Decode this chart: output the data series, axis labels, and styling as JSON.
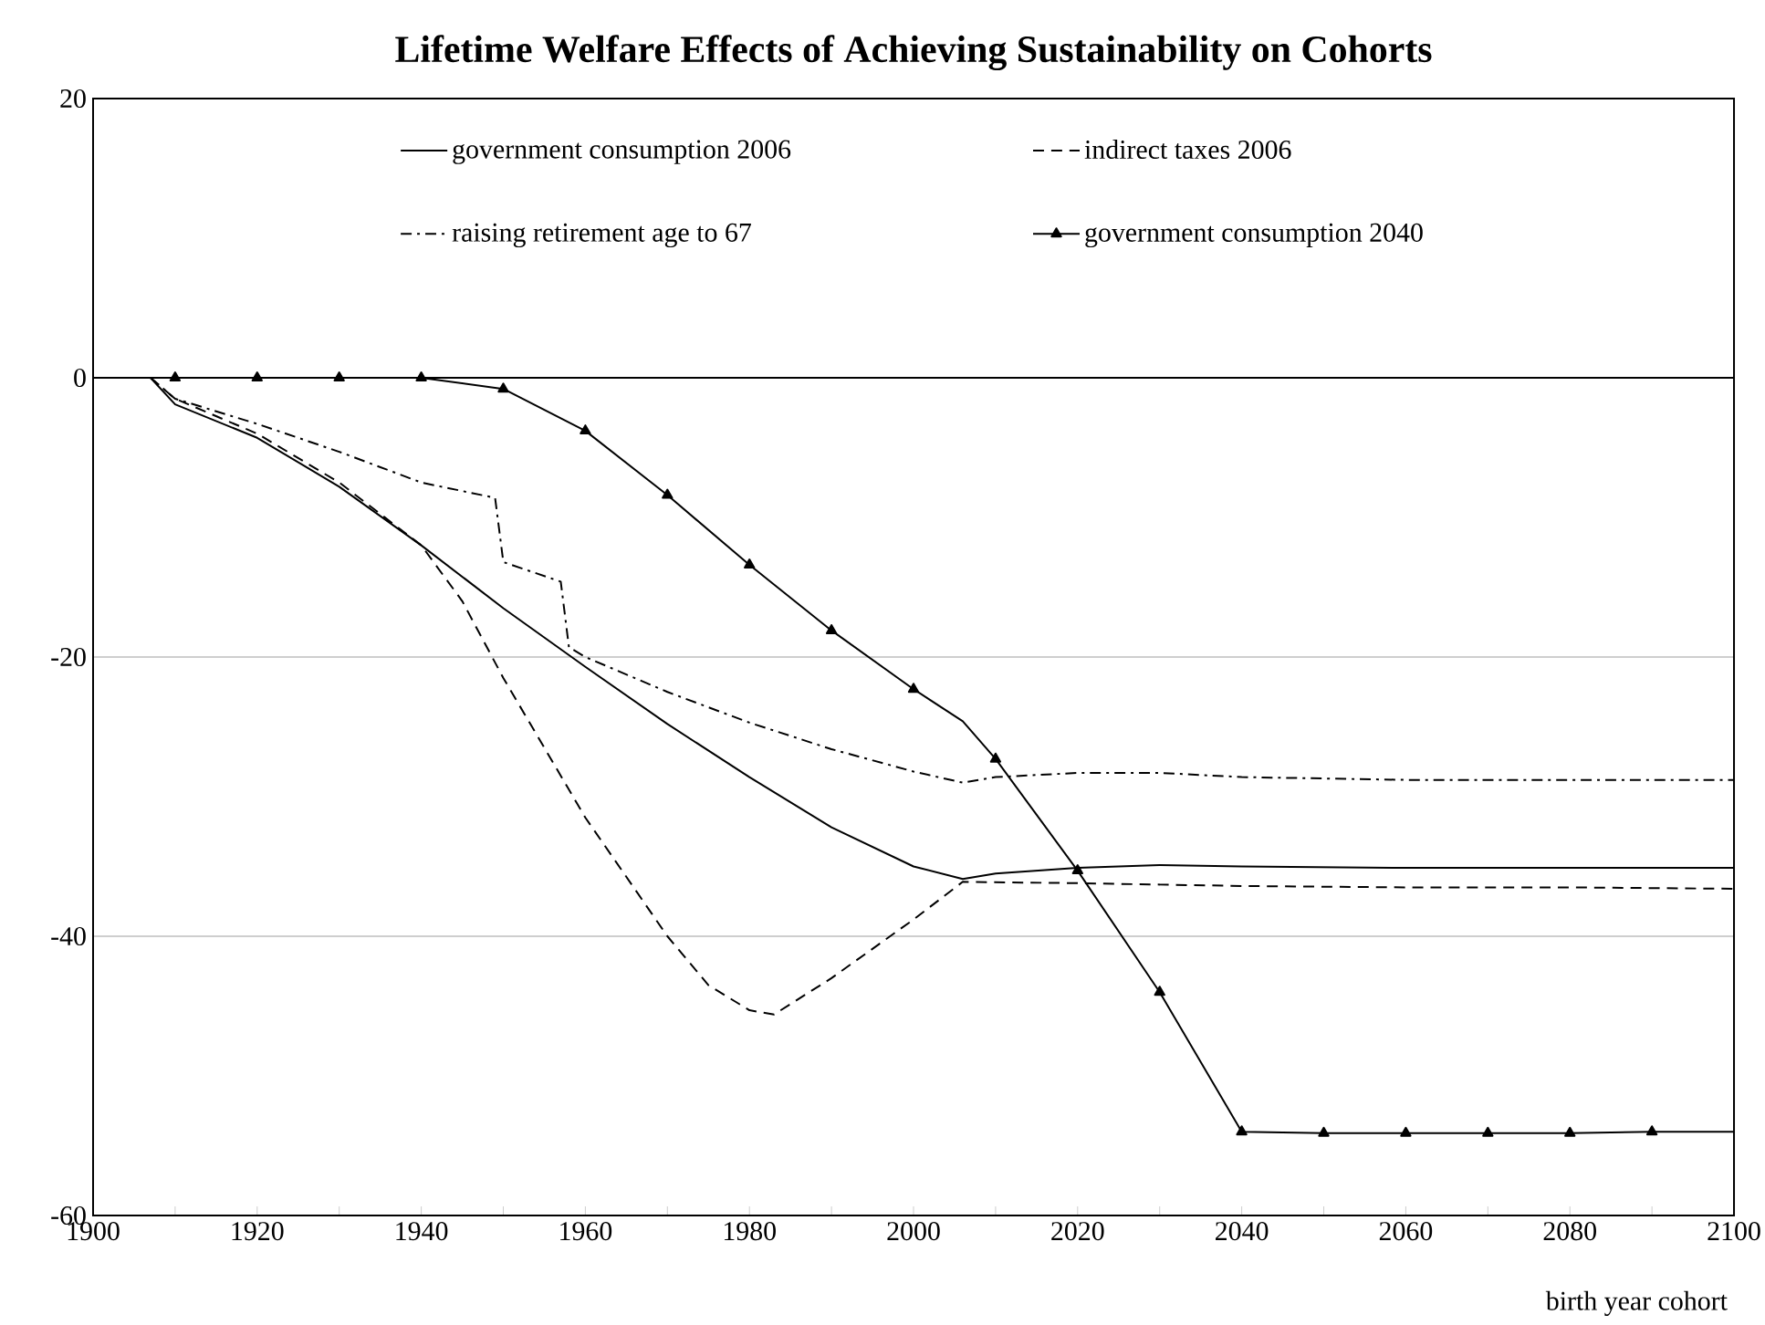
{
  "chart_data": {
    "type": "line",
    "title": "Lifetime Welfare Effects of Achieving Sustainability on Cohorts",
    "xlabel": "birth year cohort",
    "xlim": [
      1900,
      2100
    ],
    "ylim": [
      -60,
      20
    ],
    "xticks": [
      1900,
      {
        "value": 1910,
        "label": null
      },
      1920,
      {
        "value": 1930,
        "label": null
      },
      1940,
      {
        "value": 1950,
        "label": null
      },
      1960,
      {
        "value": 1970,
        "label": null
      },
      1980,
      {
        "value": 1990,
        "label": null
      },
      2000,
      {
        "value": 2010,
        "label": null
      },
      2020,
      {
        "value": 2030,
        "label": null
      },
      2040,
      {
        "value": 2050,
        "label": null
      },
      2060,
      {
        "value": 2070,
        "label": null
      },
      2080,
      {
        "value": 2090,
        "label": null
      },
      2100
    ],
    "yticks": [
      -60,
      -40,
      -20,
      0,
      20
    ],
    "grid": "y",
    "legend": "top",
    "ref_lines": [
      {
        "axis": "y",
        "value": 0,
        "color": "#000000"
      }
    ],
    "series": [
      {
        "name": "government consumption 2006",
        "color": "#000000",
        "line_style": "solid",
        "x": [
          1907,
          1910,
          1920,
          1930,
          1940,
          1950,
          1960,
          1970,
          1980,
          1990,
          2000,
          2006,
          2010,
          2020,
          2030,
          2040,
          2060,
          2080,
          2100
        ],
        "values": [
          0,
          -1.9,
          -4.3,
          -7.8,
          -12.0,
          -16.5,
          -20.7,
          -24.8,
          -28.6,
          -32.2,
          -35.0,
          -35.9,
          -35.5,
          -35.1,
          -34.9,
          -35.0,
          -35.1,
          -35.1,
          -35.1
        ]
      },
      {
        "name": "indirect taxes 2006",
        "color": "#000000",
        "line_style": "dashed",
        "x": [
          1907,
          1910,
          1920,
          1930,
          1940,
          1945,
          1950,
          1960,
          1970,
          1975,
          1980,
          1983,
          1990,
          2000,
          2006,
          2020,
          2040,
          2060,
          2080,
          2100
        ],
        "values": [
          0,
          -1.5,
          -4.0,
          -7.5,
          -12.0,
          -16.0,
          -21.5,
          -31.5,
          -40.0,
          -43.5,
          -45.3,
          -45.6,
          -43.0,
          -38.8,
          -36.1,
          -36.2,
          -36.4,
          -36.5,
          -36.5,
          -36.6
        ]
      },
      {
        "name": "raising retirement age to 67",
        "color": "#000000",
        "line_style": "dashdot",
        "x": [
          1907,
          1910,
          1920,
          1930,
          1940,
          1949,
          1950,
          1957,
          1958,
          1960,
          1970,
          1980,
          1990,
          2000,
          2006,
          2010,
          2020,
          2030,
          2040,
          2060,
          2080,
          2100
        ],
        "values": [
          0,
          -1.5,
          -3.3,
          -5.3,
          -7.5,
          -8.6,
          -13.2,
          -14.6,
          -19.3,
          -20.0,
          -22.5,
          -24.7,
          -26.6,
          -28.2,
          -29.0,
          -28.6,
          -28.3,
          -28.3,
          -28.6,
          -28.8,
          -28.8,
          -28.8
        ]
      },
      {
        "name": "government consumption 2040",
        "color": "#000000",
        "line_style": "solid",
        "marker": "triangle",
        "x": [
          1907,
          1910,
          1920,
          1930,
          1940,
          1950,
          1960,
          1970,
          1980,
          1990,
          2000,
          2006,
          2010,
          2020,
          2030,
          2040,
          2050,
          2060,
          2070,
          2080,
          2090,
          2100
        ],
        "values": [
          0,
          0,
          0,
          0,
          0,
          -0.8,
          -3.8,
          -8.4,
          -13.4,
          -18.1,
          -22.3,
          -24.6,
          -27.3,
          -35.3,
          -44.0,
          -54.0,
          -54.1,
          -54.1,
          -54.1,
          -54.1,
          -54.0,
          -54.0
        ]
      }
    ]
  }
}
